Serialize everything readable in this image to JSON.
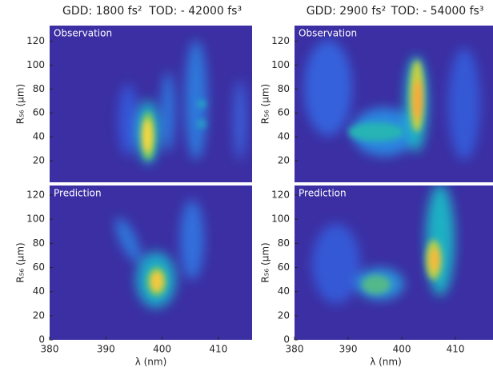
{
  "chart_data": [
    {
      "type": "heatmap",
      "title": "GDD: 1800 fs²",
      "subtitle": "TOD: - 42000 fs³",
      "annotation": "Observation",
      "y_label": "R₅₆ (μm)",
      "ylim": [
        2,
        133
      ],
      "yticks": [
        20,
        40,
        60,
        80,
        100,
        120
      ]
    },
    {
      "type": "heatmap",
      "title": "GDD: 2900 fs²",
      "subtitle": "TOD: - 54000 fs³",
      "annotation": "Observation",
      "y_label": "R₅₆ (μm)",
      "ylim": [
        2,
        133
      ],
      "yticks": [
        20,
        40,
        60,
        80,
        100,
        120
      ]
    },
    {
      "type": "heatmap",
      "annotation": "Prediction",
      "y_label": "R₅₆ (μm)",
      "x_label": "λ (nm)",
      "xlim": [
        380,
        416
      ],
      "xticks": [
        380,
        390,
        400,
        410
      ],
      "ylim": [
        0,
        128
      ],
      "yticks": [
        0,
        20,
        40,
        60,
        80,
        100,
        120
      ]
    },
    {
      "type": "heatmap",
      "annotation": "Prediction",
      "y_label": "R₅₆ (μm)",
      "x_label": "λ (nm)",
      "xlim": [
        380,
        417
      ],
      "xticks": [
        380,
        390,
        400,
        410
      ],
      "ylim": [
        0,
        128
      ],
      "yticks": [
        0,
        20,
        40,
        60,
        80,
        100,
        120
      ]
    }
  ]
}
